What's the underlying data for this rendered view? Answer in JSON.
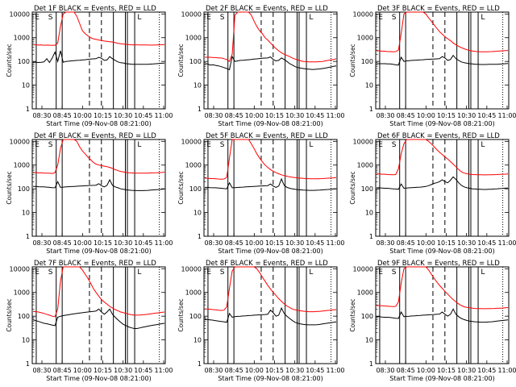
{
  "colors": {
    "background": "#ffffff",
    "axes": "#000000",
    "events": "#000000",
    "lld": "#ff0000"
  },
  "figure": {
    "ylabel": "Counts/sec",
    "xlabel": "Start Time (09-Nov-08 08:21:00)",
    "xticks": [
      "08:30",
      "08:45",
      "10:00",
      "10:15",
      "10:30",
      "10:45",
      "11:00"
    ],
    "ytick_labels": [
      "1",
      "10",
      "100",
      "1000",
      "10000"
    ]
  },
  "chart_data": [
    {
      "type": "line",
      "title": "Det 1F BLACK = Events, RED = LLD",
      "ylim": [
        1,
        12000
      ],
      "log_y": true,
      "markers": {
        "letters": [
          "E",
          "S"
        ],
        "end_letter": "L"
      },
      "series": [
        {
          "color": "#000000",
          "values": [
            92,
            92,
            90,
            92,
            95,
            130,
            90,
            140,
            250,
            100,
            280,
            92,
            100,
            102,
            105,
            108,
            110,
            112,
            115,
            118,
            122,
            125,
            128,
            130,
            150,
            135,
            110,
            115,
            160,
            130,
            110,
            95,
            88,
            86,
            80,
            78,
            76,
            76,
            75,
            75,
            75,
            76,
            76,
            77,
            78,
            80,
            82,
            84,
            85
          ]
        },
        {
          "color": "#ff0000",
          "values": [
            500,
            500,
            490,
            495,
            480,
            490,
            480,
            480,
            480,
            600,
            3000,
            10000,
            12000,
            12000,
            12000,
            12000,
            8000,
            4000,
            2000,
            1500,
            1200,
            1000,
            900,
            850,
            800,
            760,
            720,
            700,
            680,
            660,
            620,
            580,
            560,
            540,
            520,
            510,
            500,
            500,
            500,
            495,
            495,
            495,
            490,
            490,
            490,
            495,
            500,
            505,
            510
          ]
        }
      ]
    },
    {
      "type": "line",
      "title": "Det 2F BLACK = Events, RED = LLD",
      "ylim": [
        1,
        12000
      ],
      "log_y": true,
      "markers": {
        "letters": [
          "E",
          "S"
        ],
        "end_letter": "L"
      },
      "series": [
        {
          "color": "#000000",
          "values": [
            80,
            78,
            70,
            72,
            68,
            65,
            60,
            55,
            50,
            45,
            160,
            100,
            105,
            110,
            112,
            115,
            118,
            120,
            125,
            128,
            132,
            135,
            138,
            140,
            155,
            120,
            105,
            110,
            140,
            120,
            100,
            80,
            70,
            60,
            55,
            52,
            50,
            48,
            47,
            46,
            46,
            47,
            48,
            50,
            52,
            55,
            58,
            62,
            65
          ]
        },
        {
          "color": "#ff0000",
          "values": [
            150,
            150,
            150,
            145,
            145,
            140,
            140,
            130,
            120,
            100,
            200,
            9000,
            12000,
            12000,
            12000,
            12000,
            12000,
            9000,
            5000,
            3000,
            2000,
            1500,
            1000,
            800,
            600,
            450,
            350,
            280,
            230,
            200,
            180,
            160,
            140,
            125,
            115,
            105,
            100,
            98,
            96,
            95,
            95,
            96,
            98,
            100,
            105,
            110,
            115,
            120,
            130
          ]
        }
      ]
    },
    {
      "type": "line",
      "title": "Det 3F BLACK = Events, RED = LLD",
      "ylim": [
        1,
        12000
      ],
      "log_y": true,
      "markers": {
        "letters": [
          "E",
          "S"
        ],
        "end_letter": "L"
      },
      "series": [
        {
          "color": "#000000",
          "values": [
            80,
            80,
            80,
            80,
            78,
            78,
            75,
            72,
            70,
            150,
            100,
            105,
            108,
            110,
            112,
            114,
            116,
            118,
            120,
            122,
            124,
            126,
            128,
            130,
            160,
            140,
            110,
            120,
            180,
            130,
            110,
            95,
            88,
            84,
            80,
            78,
            76,
            75,
            74,
            74,
            74,
            75,
            75,
            76,
            76,
            77,
            78,
            80,
            82
          ]
        },
        {
          "color": "#ff0000",
          "values": [
            280,
            280,
            270,
            270,
            260,
            260,
            255,
            260,
            300,
            1500,
            10000,
            12000,
            12000,
            12000,
            12000,
            12000,
            12000,
            12000,
            10000,
            7000,
            5000,
            3500,
            2500,
            1800,
            1400,
            1100,
            900,
            750,
            600,
            500,
            430,
            380,
            340,
            310,
            290,
            275,
            265,
            260,
            255,
            255,
            255,
            258,
            260,
            265,
            270,
            275,
            280,
            285,
            290
          ]
        }
      ]
    },
    {
      "type": "line",
      "title": "Det 4F BLACK = Events, RED = LLD",
      "ylim": [
        1,
        12000
      ],
      "log_y": true,
      "markers": {
        "letters": [
          "E",
          "S"
        ],
        "end_letter": "L"
      },
      "series": [
        {
          "color": "#000000",
          "values": [
            125,
            125,
            122,
            120,
            120,
            118,
            115,
            112,
            110,
            200,
            115,
            118,
            120,
            122,
            124,
            126,
            128,
            130,
            132,
            134,
            136,
            138,
            140,
            142,
            165,
            135,
            120,
            140,
            240,
            140,
            120,
            110,
            100,
            95,
            90,
            88,
            86,
            85,
            84,
            84,
            84,
            85,
            86,
            88,
            90,
            92,
            94,
            96,
            98
          ]
        },
        {
          "color": "#ff0000",
          "values": [
            480,
            480,
            470,
            470,
            460,
            455,
            450,
            440,
            480,
            1000,
            5000,
            12000,
            12000,
            12000,
            12000,
            12000,
            10000,
            6000,
            4000,
            3000,
            2200,
            1700,
            1300,
            1100,
            1000,
            950,
            900,
            850,
            800,
            720,
            640,
            580,
            540,
            510,
            490,
            475,
            465,
            460,
            455,
            455,
            455,
            458,
            460,
            465,
            470,
            475,
            480,
            490,
            500
          ]
        }
      ]
    },
    {
      "type": "line",
      "title": "Det 5F BLACK = Events, RED = LLD",
      "ylim": [
        1,
        12000
      ],
      "log_y": true,
      "markers": {
        "letters": [
          "E",
          "S"
        ],
        "end_letter": "L"
      },
      "series": [
        {
          "color": "#000000",
          "values": [
            115,
            115,
            112,
            110,
            110,
            108,
            105,
            102,
            100,
            180,
            110,
            112,
            114,
            116,
            118,
            120,
            122,
            124,
            126,
            128,
            130,
            132,
            134,
            136,
            160,
            130,
            115,
            130,
            260,
            140,
            115,
            105,
            100,
            95,
            92,
            90,
            88,
            87,
            86,
            86,
            86,
            87,
            88,
            90,
            92,
            94,
            96,
            98,
            100
          ]
        },
        {
          "color": "#ff0000",
          "values": [
            280,
            280,
            270,
            270,
            265,
            260,
            255,
            260,
            300,
            2000,
            12000,
            12000,
            12000,
            12000,
            12000,
            12000,
            12000,
            8000,
            5000,
            3000,
            2000,
            1400,
            1000,
            800,
            650,
            550,
            480,
            430,
            390,
            360,
            340,
            320,
            305,
            295,
            285,
            280,
            275,
            270,
            268,
            265,
            265,
            265,
            268,
            270,
            275,
            280,
            285,
            290,
            300
          ]
        }
      ]
    },
    {
      "type": "line",
      "title": "Det 6F BLACK = Events, RED = LLD",
      "ylim": [
        1,
        12000
      ],
      "log_y": true,
      "markers": {
        "letters": [
          "E",
          "S"
        ],
        "end_letter": "L"
      },
      "series": [
        {
          "color": "#000000",
          "values": [
            110,
            110,
            108,
            105,
            105,
            102,
            100,
            98,
            95,
            160,
            105,
            108,
            110,
            112,
            114,
            116,
            118,
            120,
            125,
            135,
            150,
            170,
            180,
            200,
            240,
            200,
            180,
            230,
            320,
            250,
            180,
            140,
            120,
            110,
            105,
            100,
            98,
            96,
            95,
            94,
            94,
            95,
            96,
            98,
            100,
            102,
            104,
            106,
            108
          ]
        },
        {
          "color": "#ff0000",
          "values": [
            420,
            420,
            410,
            410,
            400,
            395,
            390,
            400,
            700,
            3000,
            8000,
            12000,
            12000,
            12000,
            12000,
            12000,
            12000,
            12000,
            12000,
            10000,
            8000,
            6000,
            4500,
            3500,
            2800,
            2200,
            1800,
            1400,
            1100,
            850,
            650,
            520,
            460,
            430,
            410,
            400,
            395,
            390,
            388,
            385,
            385,
            388,
            390,
            395,
            400,
            405,
            410,
            415,
            420
          ]
        }
      ]
    },
    {
      "type": "line",
      "title": "Det 7F BLACK = Events, RED = LLD",
      "ylim": [
        1,
        12000
      ],
      "log_y": true,
      "markers": {
        "letters": [
          "E",
          "S"
        ],
        "end_letter": "L"
      },
      "series": [
        {
          "color": "#000000",
          "values": [
            70,
            65,
            60,
            55,
            50,
            48,
            45,
            42,
            40,
            90,
            100,
            105,
            110,
            115,
            120,
            125,
            130,
            135,
            140,
            145,
            150,
            155,
            160,
            165,
            200,
            150,
            120,
            150,
            200,
            120,
            90,
            70,
            55,
            45,
            40,
            35,
            32,
            30,
            30,
            32,
            34,
            36,
            38,
            40,
            42,
            44,
            46,
            48,
            50
          ]
        },
        {
          "color": "#ff0000",
          "values": [
            160,
            155,
            150,
            140,
            130,
            120,
            110,
            100,
            95,
            200,
            3000,
            12000,
            12000,
            12000,
            12000,
            12000,
            12000,
            12000,
            9000,
            6000,
            4000,
            2500,
            1500,
            1000,
            700,
            500,
            400,
            320,
            260,
            220,
            190,
            170,
            150,
            140,
            130,
            120,
            115,
            110,
            110,
            112,
            115,
            118,
            120,
            125,
            130,
            135,
            140,
            145,
            150
          ]
        }
      ]
    },
    {
      "type": "line",
      "title": "Det 8F BLACK = Events, RED = LLD",
      "ylim": [
        1,
        12000
      ],
      "log_y": true,
      "markers": {
        "letters": [
          "E",
          "S"
        ],
        "end_letter": "L"
      },
      "series": [
        {
          "color": "#000000",
          "values": [
            75,
            72,
            70,
            68,
            65,
            62,
            60,
            58,
            55,
            130,
            90,
            95,
            98,
            100,
            102,
            104,
            106,
            108,
            110,
            112,
            114,
            116,
            118,
            120,
            180,
            140,
            100,
            110,
            220,
            130,
            100,
            80,
            65,
            55,
            50,
            47,
            45,
            44,
            43,
            43,
            43,
            44,
            45,
            47,
            49,
            51,
            53,
            55,
            58
          ]
        },
        {
          "color": "#ff0000",
          "values": [
            200,
            200,
            195,
            190,
            185,
            180,
            175,
            180,
            250,
            1500,
            8000,
            12000,
            12000,
            12000,
            12000,
            12000,
            12000,
            12000,
            12000,
            10000,
            7000,
            4500,
            3000,
            2000,
            1400,
            1000,
            750,
            550,
            420,
            330,
            270,
            230,
            200,
            185,
            175,
            168,
            162,
            158,
            155,
            155,
            155,
            158,
            160,
            165,
            170,
            175,
            180,
            185,
            190
          ]
        }
      ]
    },
    {
      "type": "line",
      "title": "Det 9F BLACK = Events, RED = LLD",
      "ylim": [
        1,
        12000
      ],
      "log_y": true,
      "markers": {
        "letters": [
          "E",
          "S"
        ],
        "end_letter": "L"
      },
      "series": [
        {
          "color": "#000000",
          "values": [
            95,
            95,
            92,
            90,
            90,
            88,
            85,
            82,
            80,
            150,
            95,
            98,
            100,
            102,
            104,
            106,
            108,
            110,
            112,
            114,
            116,
            118,
            120,
            122,
            150,
            120,
            100,
            120,
            200,
            120,
            95,
            80,
            72,
            66,
            62,
            60,
            58,
            57,
            56,
            56,
            56,
            57,
            58,
            60,
            62,
            64,
            66,
            68,
            70
          ]
        },
        {
          "color": "#ff0000",
          "values": [
            280,
            280,
            275,
            270,
            265,
            260,
            255,
            260,
            400,
            2500,
            10000,
            12000,
            12000,
            12000,
            12000,
            12000,
            12000,
            12000,
            12000,
            9000,
            6000,
            4000,
            2800,
            2000,
            1500,
            1100,
            850,
            650,
            500,
            400,
            330,
            280,
            250,
            235,
            225,
            218,
            212,
            210,
            208,
            207,
            207,
            208,
            210,
            212,
            215,
            218,
            220,
            225,
            230
          ]
        }
      ]
    }
  ]
}
